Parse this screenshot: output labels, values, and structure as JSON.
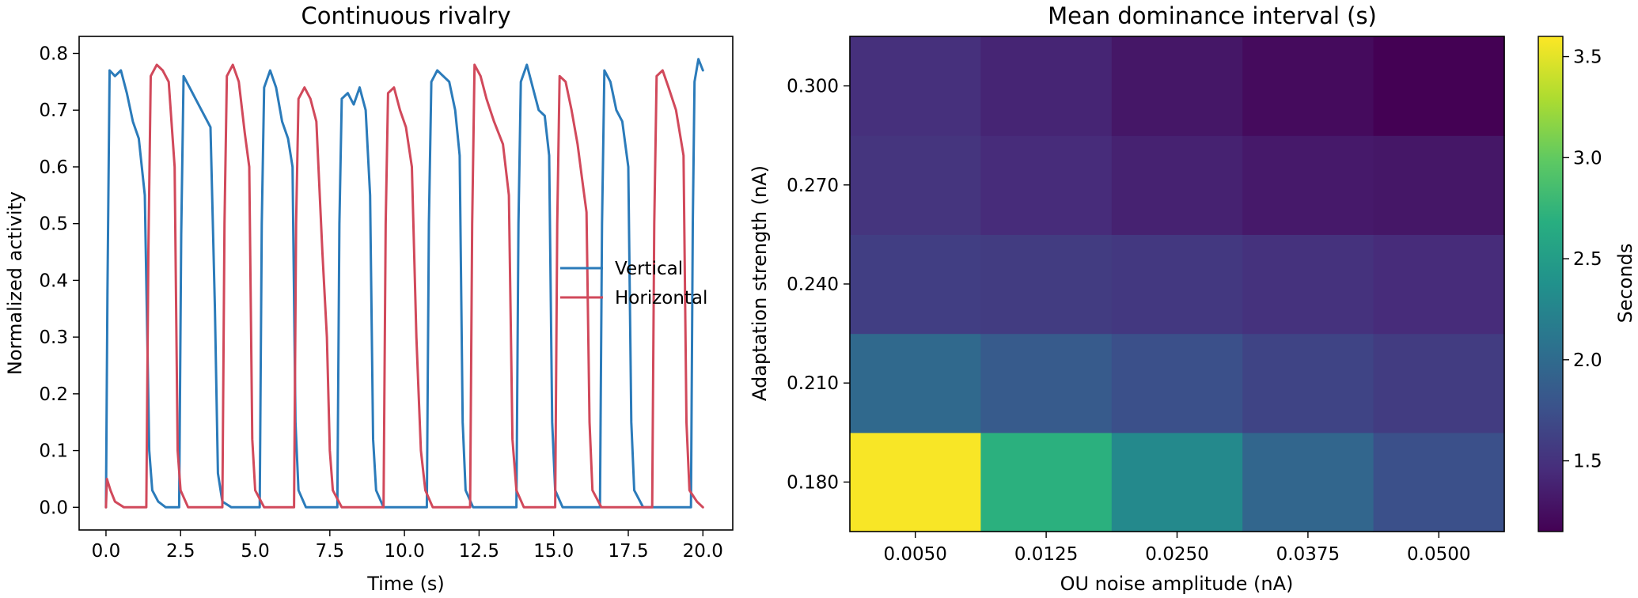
{
  "chart_data": [
    {
      "type": "line",
      "title": "Continuous rivalry",
      "xlabel": "Time (s)",
      "ylabel": "Normalized activity",
      "xlim": [
        -0.9,
        21.0
      ],
      "ylim": [
        -0.04,
        0.83
      ],
      "x_ticks": [
        0.0,
        2.5,
        5.0,
        7.5,
        10.0,
        12.5,
        15.0,
        17.5,
        20.0
      ],
      "x_tick_labels": [
        "0.0",
        "2.5",
        "5.0",
        "7.5",
        "10.0",
        "12.5",
        "15.0",
        "17.5",
        "20.0"
      ],
      "y_ticks": [
        0.0,
        0.1,
        0.2,
        0.3,
        0.4,
        0.5,
        0.6,
        0.7,
        0.8
      ],
      "y_tick_labels": [
        "0.0",
        "0.1",
        "0.2",
        "0.3",
        "0.4",
        "0.5",
        "0.6",
        "0.7",
        "0.8"
      ],
      "legend": {
        "position": "center-right"
      },
      "series": [
        {
          "name": "Vertical",
          "color": "#2b7bba",
          "points": [
            [
              0.0,
              0.0
            ],
            [
              0.05,
              0.38
            ],
            [
              0.12,
              0.77
            ],
            [
              0.3,
              0.76
            ],
            [
              0.5,
              0.77
            ],
            [
              0.7,
              0.73
            ],
            [
              0.9,
              0.68
            ],
            [
              1.1,
              0.65
            ],
            [
              1.3,
              0.55
            ],
            [
              1.45,
              0.1
            ],
            [
              1.55,
              0.03
            ],
            [
              1.75,
              0.01
            ],
            [
              2.0,
              0.0
            ],
            [
              2.45,
              0.0
            ],
            [
              2.52,
              0.48
            ],
            [
              2.6,
              0.76
            ],
            [
              2.8,
              0.74
            ],
            [
              3.0,
              0.72
            ],
            [
              3.2,
              0.7
            ],
            [
              3.5,
              0.67
            ],
            [
              3.65,
              0.35
            ],
            [
              3.75,
              0.06
            ],
            [
              3.9,
              0.01
            ],
            [
              4.2,
              0.0
            ],
            [
              5.15,
              0.0
            ],
            [
              5.22,
              0.5
            ],
            [
              5.3,
              0.74
            ],
            [
              5.5,
              0.77
            ],
            [
              5.7,
              0.74
            ],
            [
              5.9,
              0.68
            ],
            [
              6.1,
              0.65
            ],
            [
              6.25,
              0.6
            ],
            [
              6.35,
              0.15
            ],
            [
              6.45,
              0.03
            ],
            [
              6.7,
              0.0
            ],
            [
              7.75,
              0.0
            ],
            [
              7.82,
              0.5
            ],
            [
              7.9,
              0.72
            ],
            [
              8.1,
              0.73
            ],
            [
              8.3,
              0.71
            ],
            [
              8.5,
              0.74
            ],
            [
              8.7,
              0.7
            ],
            [
              8.85,
              0.55
            ],
            [
              8.95,
              0.12
            ],
            [
              9.05,
              0.03
            ],
            [
              9.3,
              0.0
            ],
            [
              10.75,
              0.0
            ],
            [
              10.82,
              0.5
            ],
            [
              10.9,
              0.75
            ],
            [
              11.1,
              0.77
            ],
            [
              11.3,
              0.76
            ],
            [
              11.5,
              0.75
            ],
            [
              11.7,
              0.7
            ],
            [
              11.85,
              0.62
            ],
            [
              11.95,
              0.15
            ],
            [
              12.05,
              0.03
            ],
            [
              12.3,
              0.0
            ],
            [
              13.75,
              0.0
            ],
            [
              13.82,
              0.5
            ],
            [
              13.9,
              0.75
            ],
            [
              14.1,
              0.78
            ],
            [
              14.3,
              0.74
            ],
            [
              14.5,
              0.7
            ],
            [
              14.7,
              0.69
            ],
            [
              14.85,
              0.62
            ],
            [
              14.95,
              0.15
            ],
            [
              15.05,
              0.03
            ],
            [
              15.3,
              0.0
            ],
            [
              16.55,
              0.0
            ],
            [
              16.62,
              0.5
            ],
            [
              16.7,
              0.77
            ],
            [
              16.9,
              0.75
            ],
            [
              17.1,
              0.7
            ],
            [
              17.3,
              0.68
            ],
            [
              17.5,
              0.6
            ],
            [
              17.6,
              0.15
            ],
            [
              17.7,
              0.03
            ],
            [
              18.0,
              0.0
            ],
            [
              19.6,
              0.0
            ],
            [
              19.66,
              0.5
            ],
            [
              19.72,
              0.75
            ],
            [
              19.85,
              0.79
            ],
            [
              20.0,
              0.77
            ]
          ]
        },
        {
          "name": "Horizontal",
          "color": "#d1495b",
          "points": [
            [
              0.0,
              0.0
            ],
            [
              0.03,
              0.05
            ],
            [
              0.15,
              0.03
            ],
            [
              0.3,
              0.01
            ],
            [
              0.6,
              0.0
            ],
            [
              1.35,
              0.0
            ],
            [
              1.42,
              0.45
            ],
            [
              1.5,
              0.76
            ],
            [
              1.7,
              0.78
            ],
            [
              1.9,
              0.77
            ],
            [
              2.1,
              0.75
            ],
            [
              2.3,
              0.6
            ],
            [
              2.4,
              0.1
            ],
            [
              2.5,
              0.03
            ],
            [
              2.75,
              0.0
            ],
            [
              3.9,
              0.0
            ],
            [
              3.97,
              0.5
            ],
            [
              4.05,
              0.76
            ],
            [
              4.25,
              0.78
            ],
            [
              4.45,
              0.75
            ],
            [
              4.65,
              0.66
            ],
            [
              4.8,
              0.6
            ],
            [
              4.9,
              0.12
            ],
            [
              5.0,
              0.03
            ],
            [
              5.3,
              0.0
            ],
            [
              6.3,
              0.0
            ],
            [
              6.37,
              0.5
            ],
            [
              6.45,
              0.72
            ],
            [
              6.65,
              0.74
            ],
            [
              6.85,
              0.72
            ],
            [
              7.05,
              0.68
            ],
            [
              7.25,
              0.45
            ],
            [
              7.4,
              0.3
            ],
            [
              7.5,
              0.1
            ],
            [
              7.6,
              0.03
            ],
            [
              7.9,
              0.0
            ],
            [
              9.3,
              0.0
            ],
            [
              9.37,
              0.5
            ],
            [
              9.45,
              0.73
            ],
            [
              9.65,
              0.74
            ],
            [
              9.85,
              0.7
            ],
            [
              10.05,
              0.67
            ],
            [
              10.25,
              0.6
            ],
            [
              10.4,
              0.3
            ],
            [
              10.55,
              0.1
            ],
            [
              10.7,
              0.03
            ],
            [
              10.95,
              0.0
            ],
            [
              12.2,
              0.0
            ],
            [
              12.27,
              0.5
            ],
            [
              12.35,
              0.78
            ],
            [
              12.55,
              0.76
            ],
            [
              12.75,
              0.72
            ],
            [
              13.0,
              0.68
            ],
            [
              13.3,
              0.64
            ],
            [
              13.5,
              0.55
            ],
            [
              13.62,
              0.12
            ],
            [
              13.75,
              0.03
            ],
            [
              14.0,
              0.0
            ],
            [
              15.05,
              0.0
            ],
            [
              15.12,
              0.5
            ],
            [
              15.2,
              0.76
            ],
            [
              15.4,
              0.75
            ],
            [
              15.6,
              0.7
            ],
            [
              15.8,
              0.64
            ],
            [
              15.95,
              0.58
            ],
            [
              16.1,
              0.52
            ],
            [
              16.2,
              0.15
            ],
            [
              16.3,
              0.03
            ],
            [
              16.6,
              0.0
            ],
            [
              18.3,
              0.0
            ],
            [
              18.37,
              0.5
            ],
            [
              18.45,
              0.76
            ],
            [
              18.65,
              0.77
            ],
            [
              18.85,
              0.74
            ],
            [
              19.1,
              0.7
            ],
            [
              19.35,
              0.62
            ],
            [
              19.45,
              0.15
            ],
            [
              19.55,
              0.03
            ],
            [
              19.8,
              0.01
            ],
            [
              20.0,
              0.0
            ]
          ]
        }
      ]
    },
    {
      "type": "heatmap",
      "title": "Mean dominance interval (s)",
      "xlabel": "OU noise amplitude (nA)",
      "ylabel": "Adaptation strength (nA)",
      "x_categories": [
        "0.0050",
        "0.0125",
        "0.0250",
        "0.0375",
        "0.0500"
      ],
      "y_categories": [
        "0.180",
        "0.210",
        "0.240",
        "0.270",
        "0.300"
      ],
      "values": [
        [
          3.58,
          2.7,
          2.3,
          1.95,
          1.75
        ],
        [
          1.98,
          1.85,
          1.75,
          1.65,
          1.58
        ],
        [
          1.6,
          1.58,
          1.55,
          1.5,
          1.45
        ],
        [
          1.52,
          1.45,
          1.38,
          1.32,
          1.3
        ],
        [
          1.48,
          1.4,
          1.3,
          1.22,
          1.15
        ]
      ],
      "colorbar": {
        "label": "Seconds",
        "vmin": 1.15,
        "vmax": 3.6,
        "ticks": [
          1.5,
          2.0,
          2.5,
          3.0,
          3.5
        ],
        "tick_labels": [
          "1.5",
          "2.0",
          "2.5",
          "3.0",
          "3.5"
        ],
        "colormap": "viridis"
      }
    }
  ]
}
